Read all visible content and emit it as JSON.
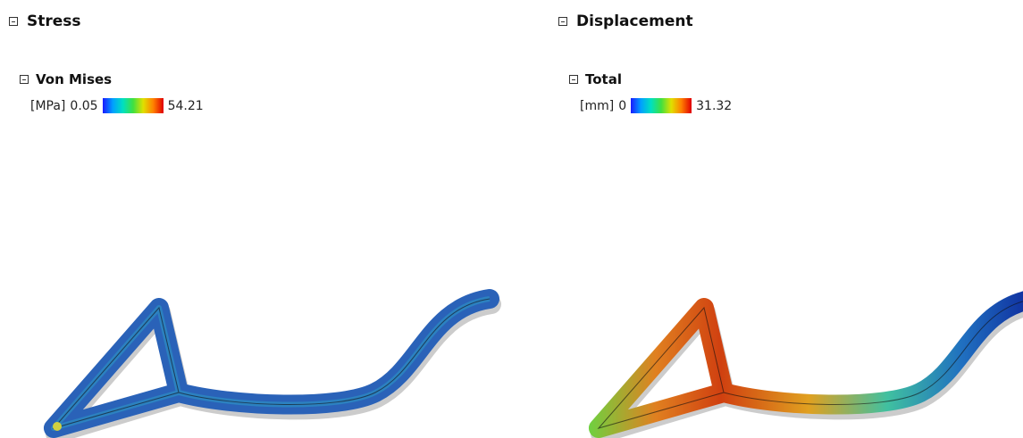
{
  "panels": [
    {
      "title": "Stress",
      "subtitle": "Von Mises",
      "unit": "[MPa]",
      "min": 0.05,
      "max": 54.21
    },
    {
      "title": "Displacement",
      "subtitle": "Total",
      "unit": "[mm]",
      "min": 0,
      "max": 31.32
    }
  ]
}
